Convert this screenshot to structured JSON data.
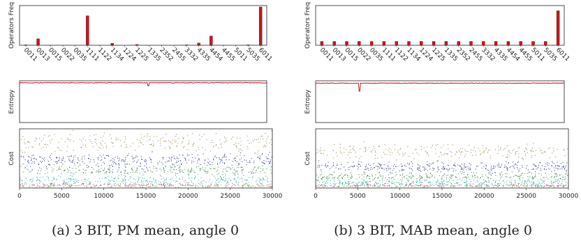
{
  "chart_data": [
    {
      "type": "bar",
      "panel": "a-top",
      "ylabel": "Operators Freq",
      "categories": [
        "0011",
        "0013",
        "0015",
        "0022",
        "0035",
        "1111",
        "1122",
        "1134",
        "1224",
        "1225",
        "1335",
        "2352",
        "2455",
        "3332",
        "4335",
        "4454",
        "4455",
        "5011",
        "5035",
        "6011"
      ],
      "values": [
        0.01,
        0.17,
        0.0,
        0.0,
        0.0,
        0.77,
        0.0,
        0.05,
        0.0,
        0.02,
        0.0,
        0.0,
        0.0,
        0.01,
        0.06,
        0.24,
        0.0,
        0.0,
        0.01,
        1.0
      ],
      "ylim": [
        0,
        1
      ],
      "color": "#c0191e"
    },
    {
      "type": "line",
      "panel": "a-mid",
      "ylabel": "Entropy",
      "ylim": [
        0,
        1
      ],
      "xlim": [
        0,
        30000
      ],
      "level": 0.96,
      "dips": [
        {
          "x": 15600,
          "y": 0.88
        }
      ],
      "color": "#c0191e"
    },
    {
      "type": "scatter",
      "panel": "a-bottom",
      "ylabel": "Cost",
      "xlim": [
        0,
        30000
      ],
      "x_ticks": [
        0,
        5000,
        10000,
        15000,
        20000,
        25000,
        30000
      ],
      "bands": [
        {
          "center": 0.78,
          "spread": 0.24,
          "color": "#8c7a3e",
          "density": 260
        },
        {
          "center": 0.47,
          "spread": 0.16,
          "color": "#1c2a78",
          "density": 360
        },
        {
          "center": 0.3,
          "spread": 0.13,
          "color": "#2b7a3a",
          "density": 300
        },
        {
          "center": 0.14,
          "spread": 0.09,
          "color": "#1aa8a0",
          "density": 280
        },
        {
          "center": 0.06,
          "spread": 0.05,
          "color": "#b0388a",
          "density": 180
        },
        {
          "center": 0.04,
          "spread": 0.04,
          "color": "#5a9a2e",
          "density": 160
        }
      ]
    },
    {
      "type": "bar",
      "panel": "b-top",
      "ylabel": "Operators Freq",
      "categories": [
        "0011",
        "0013",
        "0015",
        "0022",
        "0035",
        "1111",
        "1122",
        "1134",
        "1224",
        "1225",
        "1335",
        "2352",
        "2455",
        "3332",
        "4335",
        "4454",
        "4455",
        "5011",
        "5035",
        "6011"
      ],
      "values": [
        0.1,
        0.1,
        0.1,
        0.1,
        0.1,
        0.1,
        0.1,
        0.1,
        0.1,
        0.1,
        0.1,
        0.1,
        0.1,
        0.1,
        0.1,
        0.1,
        0.1,
        0.1,
        0.1,
        0.9
      ],
      "ylim": [
        0,
        1
      ],
      "color": "#c0191e"
    },
    {
      "type": "line",
      "panel": "b-mid",
      "ylabel": "Entropy",
      "ylim": [
        0,
        1
      ],
      "xlim": [
        0,
        30000
      ],
      "level": 0.95,
      "dips": [
        {
          "x": 5300,
          "y": 0.75
        }
      ],
      "color": "#c0191e"
    },
    {
      "type": "scatter",
      "panel": "b-bottom",
      "ylabel": "Cost",
      "xlim": [
        0,
        30000
      ],
      "x_ticks": [
        0,
        5000,
        10000,
        15000,
        20000,
        25000,
        30000
      ],
      "bands": [
        {
          "center": 0.62,
          "spread": 0.18,
          "color": "#8c7a3e",
          "density": 240
        },
        {
          "center": 0.36,
          "spread": 0.13,
          "color": "#1c2a78",
          "density": 360
        },
        {
          "center": 0.2,
          "spread": 0.1,
          "color": "#2b7a3a",
          "density": 300
        },
        {
          "center": 0.1,
          "spread": 0.07,
          "color": "#1aa8a0",
          "density": 300
        },
        {
          "center": 0.05,
          "spread": 0.04,
          "color": "#b0388a",
          "density": 160
        },
        {
          "center": 0.04,
          "spread": 0.03,
          "color": "#5a9a2e",
          "density": 160
        }
      ]
    }
  ],
  "captions": {
    "a": "(a) 3 BIT, PM mean, angle 0",
    "b": "(b) 3 BIT, MAB mean, angle 0"
  }
}
